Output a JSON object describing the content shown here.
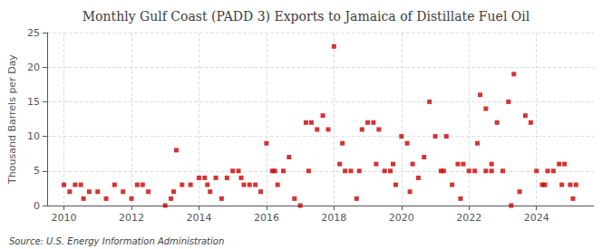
{
  "chart_data": {
    "type": "scatter",
    "title": "Monthly Gulf Coast (PADD 3) Exports to Jamaica of Distillate Fuel Oil",
    "ylabel": "Thousand Barrels per Day",
    "annotations": [
      "Source: U.S. Energy Information Administration"
    ],
    "color": "#cc0000",
    "marker": "square",
    "grid": true,
    "xlim": [
      2009.5,
      2025.7
    ],
    "xticks": [
      2010,
      2012,
      2014,
      2016,
      2018,
      2020,
      2022,
      2024
    ],
    "ylim": [
      0,
      25
    ],
    "yticks": [
      0,
      5,
      10,
      15,
      20,
      25
    ],
    "x": [
      2010.0,
      2010.17,
      2010.33,
      2010.5,
      2010.75,
      2010.58,
      2011.0,
      2011.25,
      2011.5,
      2011.75,
      2012.0,
      2012.17,
      2012.33,
      2012.5,
      2013.0,
      2013.17,
      2013.25,
      2013.33,
      2013.5,
      2013.75,
      2014.0,
      2014.17,
      2014.25,
      2014.33,
      2014.5,
      2014.67,
      2014.83,
      2015.0,
      2015.17,
      2015.25,
      2015.33,
      2015.5,
      2015.67,
      2015.83,
      2016.0,
      2016.17,
      2016.25,
      2016.33,
      2016.5,
      2016.67,
      2016.83,
      2017.0,
      2017.17,
      2017.25,
      2017.33,
      2017.5,
      2017.67,
      2017.83,
      2018.0,
      2018.17,
      2018.25,
      2018.33,
      2018.5,
      2018.67,
      2018.75,
      2018.83,
      2019.0,
      2019.17,
      2019.25,
      2019.33,
      2019.5,
      2019.67,
      2019.75,
      2019.83,
      2020.0,
      2020.17,
      2020.25,
      2020.33,
      2020.5,
      2020.67,
      2020.83,
      2021.0,
      2021.17,
      2021.25,
      2021.33,
      2021.5,
      2021.67,
      2021.75,
      2021.83,
      2022.0,
      2022.17,
      2022.25,
      2022.33,
      2022.5,
      2022.67,
      2022.83,
      2023.0,
      2023.17,
      2023.25,
      2023.33,
      2023.5,
      2023.67,
      2023.83,
      2024.0,
      2024.17,
      2024.25,
      2024.33,
      2024.5,
      2024.67,
      2024.75,
      2024.83,
      2022.5,
      2022.67,
      2025.0,
      2025.08,
      2025.17
    ],
    "values": [
      3.0,
      2.0,
      3.0,
      3.0,
      2.0,
      1.0,
      2.0,
      1.0,
      3.0,
      2.0,
      1.0,
      3.0,
      3.0,
      2.0,
      0.0,
      1.0,
      2.0,
      8.0,
      3.0,
      3.0,
      4.0,
      4.0,
      3.0,
      2.0,
      4.0,
      1.0,
      4.0,
      5.0,
      5.0,
      4.0,
      3.0,
      3.0,
      3.0,
      2.0,
      9.0,
      5.0,
      5.0,
      3.0,
      5.0,
      7.0,
      1.0,
      0.0,
      12.0,
      5.0,
      12.0,
      11.0,
      13.0,
      11.0,
      23.0,
      6.0,
      9.0,
      5.0,
      5.0,
      1.0,
      5.0,
      11.0,
      12.0,
      12.0,
      6.0,
      11.0,
      5.0,
      5.0,
      6.0,
      3.0,
      10.0,
      9.0,
      2.0,
      6.0,
      4.0,
      7.0,
      15.0,
      10.0,
      5.0,
      5.0,
      10.0,
      3.0,
      6.0,
      1.0,
      6.0,
      5.0,
      5.0,
      9.0,
      16.0,
      5.0,
      6.0,
      12.0,
      5.0,
      15.0,
      0.0,
      19.0,
      2.0,
      13.0,
      12.0,
      5.0,
      3.0,
      3.0,
      5.0,
      5.0,
      6.0,
      3.0,
      6.0,
      14.0,
      5.0,
      3.0,
      1.0,
      3.0
    ]
  }
}
